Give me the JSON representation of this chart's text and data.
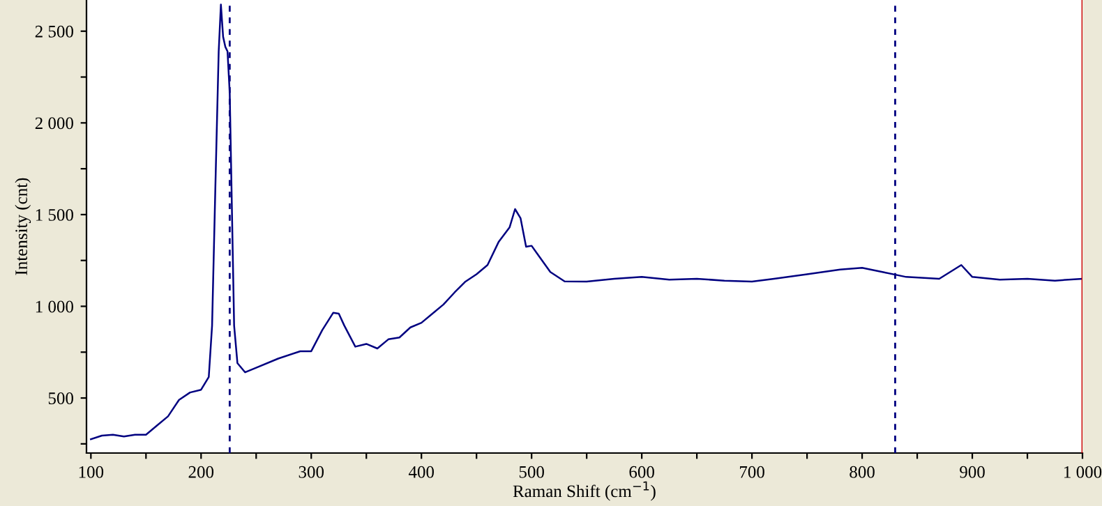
{
  "chart_data": {
    "type": "line",
    "xlabel": "Raman Shift (cm$^{−1}$)",
    "ylabel": "Intensity (cnt)",
    "xlim": [
      96,
      1000
    ],
    "ylim": [
      200,
      2670
    ],
    "xticks": [
      100,
      {
        "value": 150,
        "label": null
      },
      200,
      {
        "value": 250,
        "label": null
      },
      300,
      {
        "value": 350,
        "label": null
      },
      400,
      {
        "value": 450,
        "label": null
      },
      500,
      {
        "value": 550,
        "label": null
      },
      600,
      {
        "value": 650,
        "label": null
      },
      700,
      {
        "value": 750,
        "label": null
      },
      800,
      {
        "value": 850,
        "label": null
      },
      900,
      {
        "value": 950,
        "label": null
      },
      {
        "value": 1000,
        "label": "1 000"
      }
    ],
    "yticks": [
      {
        "value": 250,
        "label": null
      },
      500,
      {
        "value": 750,
        "label": null
      },
      {
        "value": 1000,
        "label": "1 000"
      },
      {
        "value": 1250,
        "label": null
      },
      {
        "value": 1500,
        "label": "1 500"
      },
      {
        "value": 1750,
        "label": null
      },
      {
        "value": 2000,
        "label": "2 000"
      },
      {
        "value": 2250,
        "label": null
      },
      {
        "value": 2500,
        "label": "2 500"
      }
    ],
    "grid": false,
    "legend": false,
    "marker": "none",
    "line_style": "solid",
    "series": [
      {
        "color": "#000080",
        "x": [
          100,
          110,
          120,
          130,
          140,
          150,
          160,
          170,
          180,
          190,
          200,
          207,
          210,
          213,
          216,
          218,
          220,
          222,
          224,
          226,
          228,
          230,
          233,
          240,
          250,
          270,
          290,
          300,
          310,
          320,
          325,
          330,
          340,
          350,
          360,
          370,
          380,
          390,
          400,
          410,
          420,
          430,
          440,
          450,
          460,
          470,
          480,
          485,
          490,
          495,
          500,
          505,
          517,
          530,
          550,
          575,
          600,
          625,
          650,
          675,
          700,
          720,
          750,
          780,
          800,
          820,
          840,
          870,
          890,
          900,
          925,
          950,
          975,
          1000
        ],
        "values": [
          275,
          295,
          300,
          290,
          300,
          300,
          350,
          400,
          490,
          530,
          545,
          615,
          895,
          1655,
          2390,
          2645,
          2470,
          2415,
          2390,
          2165,
          1530,
          895,
          690,
          640,
          665,
          715,
          755,
          755,
          870,
          965,
          960,
          895,
          780,
          795,
          770,
          820,
          830,
          885,
          910,
          960,
          1010,
          1075,
          1135,
          1175,
          1225,
          1350,
          1430,
          1530,
          1480,
          1325,
          1330,
          1288,
          1187,
          1136,
          1135,
          1150,
          1160,
          1145,
          1150,
          1140,
          1135,
          1150,
          1175,
          1200,
          1210,
          1185,
          1160,
          1150,
          1225,
          1160,
          1145,
          1150,
          1140,
          1150
        ]
      }
    ],
    "ref_lines": [
      {
        "axis": "x",
        "value": 226,
        "label": null,
        "color": "#000080",
        "line_style": "dashed"
      },
      {
        "axis": "x",
        "value": 830,
        "label": null,
        "color": "#000080",
        "line_style": "dashed"
      },
      {
        "axis": "x",
        "value": 1000,
        "label": null,
        "color": "#cc0000",
        "line_style": "solid"
      }
    ]
  }
}
